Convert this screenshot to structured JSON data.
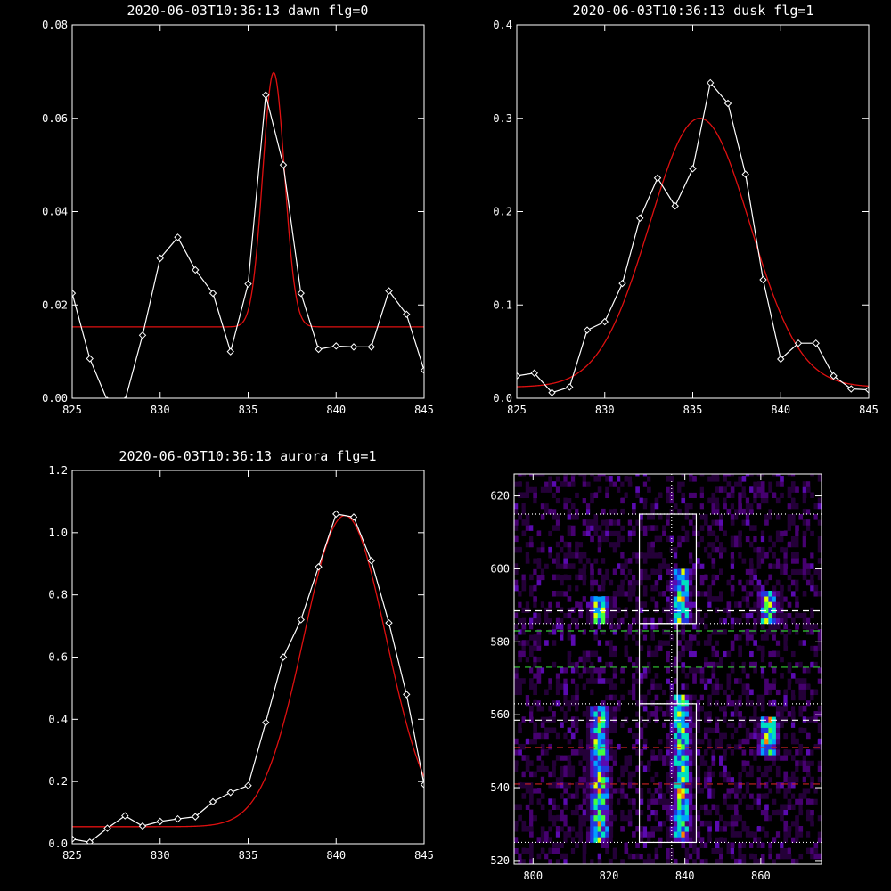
{
  "chart_data": [
    {
      "type": "line",
      "title": "2020-06-03T10:36:13 dawn flg=0",
      "xlim": [
        825,
        845
      ],
      "ylim": [
        0,
        0.08
      ],
      "xticks": [
        "825",
        "830",
        "835",
        "840",
        "845"
      ],
      "yticks": [
        "0.00",
        "0.02",
        "0.04",
        "0.06",
        "0.08"
      ],
      "data": {
        "x": [
          825,
          826,
          827,
          828,
          829,
          830,
          831,
          832,
          833,
          834,
          835,
          836,
          837,
          838,
          839,
          840,
          841,
          842,
          843,
          844,
          845
        ],
        "y": [
          0.0225,
          0.0085,
          -0.0005,
          -0.0005,
          0.0135,
          0.03,
          0.0345,
          0.0275,
          0.0225,
          0.01,
          0.0245,
          0.065,
          0.05,
          0.0225,
          0.0105,
          0.0112,
          0.011,
          0.011,
          0.023,
          0.018,
          0.006
        ]
      },
      "fit": {
        "kind": "gaussian",
        "baseline": 0.0153,
        "amplitude": 0.0545,
        "center": 836.45,
        "sigma": 0.62
      }
    },
    {
      "type": "line",
      "title": "2020-06-03T10:36:13 dusk flg=1",
      "xlim": [
        825,
        845
      ],
      "ylim": [
        0,
        0.4
      ],
      "xticks": [
        "825",
        "830",
        "835",
        "840",
        "845"
      ],
      "yticks": [
        "0.0",
        "0.1",
        "0.2",
        "0.3",
        "0.4"
      ],
      "data": {
        "x": [
          825,
          826,
          827,
          828,
          829,
          830,
          831,
          832,
          833,
          834,
          835,
          836,
          837,
          838,
          839,
          840,
          841,
          842,
          843,
          844,
          845
        ],
        "y": [
          0.024,
          0.027,
          0.006,
          0.012,
          0.073,
          0.082,
          0.123,
          0.193,
          0.236,
          0.206,
          0.246,
          0.338,
          0.316,
          0.24,
          0.127,
          0.042,
          0.059,
          0.059,
          0.024,
          0.01,
          0.009
        ]
      },
      "fit": {
        "kind": "gaussian",
        "baseline": 0.012,
        "amplitude": 0.288,
        "center": 835.4,
        "sigma": 2.85
      }
    },
    {
      "type": "line",
      "title": "2020-06-03T10:36:13 aurora flg=1",
      "xlim": [
        825,
        845
      ],
      "ylim": [
        0,
        1.2
      ],
      "xticks": [
        "825",
        "830",
        "835",
        "840",
        "845"
      ],
      "yticks": [
        "0.0",
        "0.2",
        "0.4",
        "0.6",
        "0.8",
        "1.0",
        "1.2"
      ],
      "data": {
        "x": [
          825,
          826,
          827,
          828,
          829,
          830,
          831,
          832,
          833,
          834,
          835,
          836,
          837,
          838,
          839,
          840,
          841,
          842,
          843,
          844,
          845
        ],
        "y": [
          0.015,
          0.005,
          0.05,
          0.09,
          0.057,
          0.072,
          0.08,
          0.087,
          0.135,
          0.165,
          0.187,
          0.39,
          0.6,
          0.72,
          0.89,
          1.06,
          1.05,
          0.91,
          0.71,
          0.48,
          0.19
        ]
      },
      "fit": {
        "kind": "gaussian",
        "baseline": 0.055,
        "amplitude": 1.0,
        "center": 840.5,
        "sigma": 2.35
      }
    },
    {
      "type": "heatmap",
      "title": "",
      "xlim": [
        795,
        876
      ],
      "ylim": [
        519,
        626
      ],
      "xticks": [
        "800",
        "820",
        "840",
        "860"
      ],
      "yticks": [
        "520",
        "540",
        "560",
        "580",
        "600",
        "620"
      ],
      "colormap": [
        "#000000",
        "#240038",
        "#460070",
        "#5a0ab0",
        "#2038e0",
        "#00a0ff",
        "#00e0c0",
        "#40ff40",
        "#e0ff00",
        "#ff8000",
        "#ff0000"
      ],
      "bright_stripes": [
        {
          "x_center": 817.5,
          "x_halfwidth": 2.5,
          "y_ranges": [
            [
              584,
              592
            ],
            [
              525,
              562
            ]
          ]
        },
        {
          "x_center": 839,
          "x_halfwidth": 2.5,
          "y_ranges": [
            [
              584,
              599
            ],
            [
              525,
              564
            ]
          ]
        },
        {
          "x_center": 862,
          "x_halfwidth": 2.5,
          "y_ranges": [
            [
              584,
              593
            ],
            [
              549,
              558
            ]
          ]
        }
      ],
      "boxes": [
        {
          "x": [
            828,
            843
          ],
          "y": [
            585,
            615
          ]
        },
        {
          "x": [
            828,
            843
          ],
          "y": [
            525,
            563
          ]
        },
        {
          "x": [
            828,
            838
          ],
          "y": [
            563,
            585
          ]
        }
      ],
      "hlines": [
        {
          "y": 615,
          "style": "dotted",
          "color": "#ffffff"
        },
        {
          "y": 563,
          "style": "dotted",
          "color": "#ffffff"
        },
        {
          "y": 525,
          "style": "dotted",
          "color": "#ffffff"
        },
        {
          "y": 585,
          "style": "dotted",
          "color": "#ffffff"
        },
        {
          "y": 588.5,
          "style": "dashed",
          "color": "#ffffff"
        },
        {
          "y": 558.5,
          "style": "dashed",
          "color": "#ffffff"
        },
        {
          "y": 583,
          "style": "dashed",
          "color": "#33cc33"
        },
        {
          "y": 573,
          "style": "dashed",
          "color": "#33cc33"
        },
        {
          "y": 551,
          "style": "dashed",
          "color": "#cc2222"
        },
        {
          "y": 541,
          "style": "dashed",
          "color": "#cc2222"
        }
      ],
      "vlines": [
        {
          "x": 836.5,
          "style": "dotted",
          "color": "#ffffff"
        }
      ]
    }
  ]
}
